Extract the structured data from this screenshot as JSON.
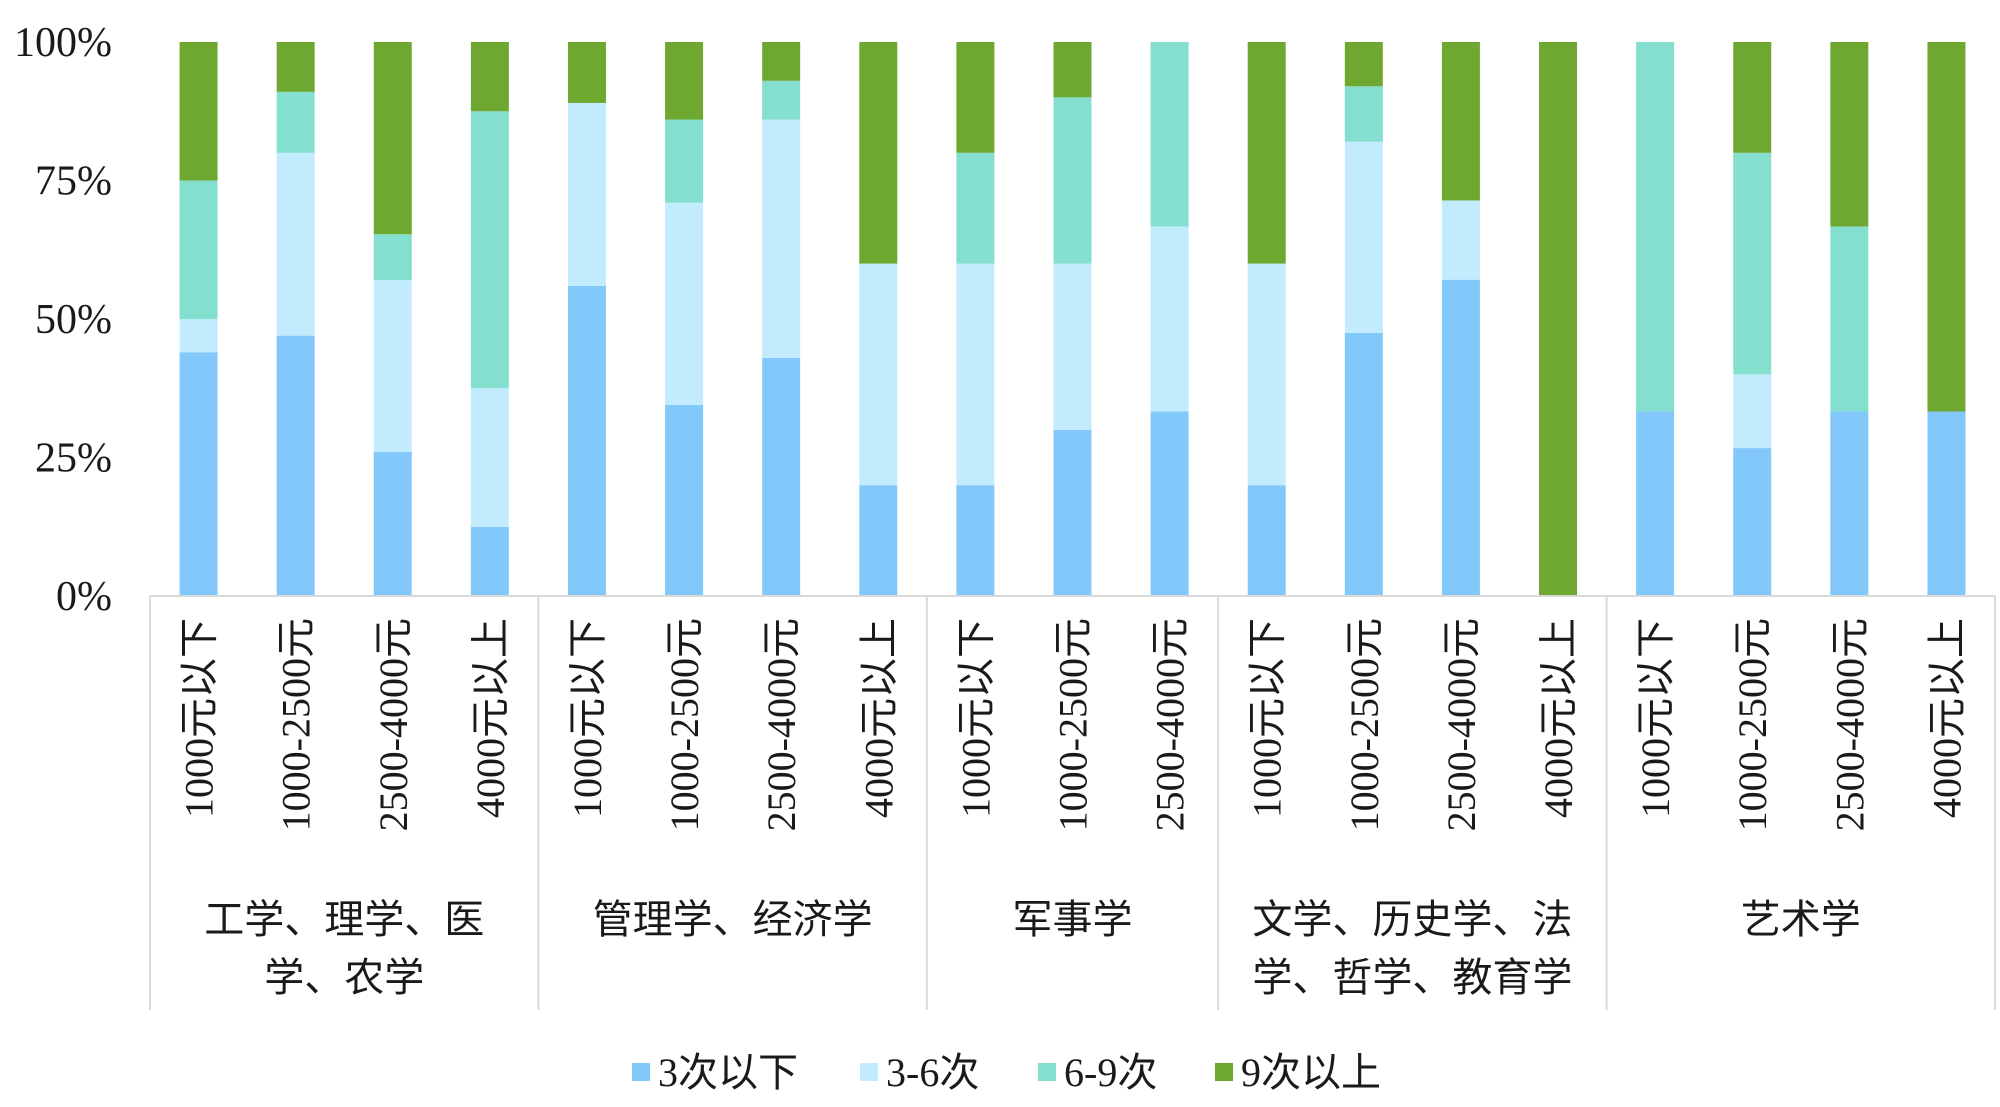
{
  "chart_data": {
    "type": "bar",
    "stacked": true,
    "normalized": true,
    "ylim": [
      0,
      100
    ],
    "y_ticks": [
      "0%",
      "25%",
      "50%",
      "75%",
      "100%"
    ],
    "grid": false,
    "legend_position": "bottom",
    "groups": [
      {
        "label_lines": [
          "工学、理学、医",
          "学、农学"
        ],
        "categories": [
          "1000元以下",
          "1000-2500元",
          "2500-4000元",
          "4000元以上"
        ]
      },
      {
        "label_lines": [
          "管理学、经济学"
        ],
        "categories": [
          "1000元以下",
          "1000-2500元",
          "2500-4000元",
          "4000元以上"
        ]
      },
      {
        "label_lines": [
          "军事学"
        ],
        "categories": [
          "1000元以下",
          "1000-2500元",
          "2500-4000元"
        ]
      },
      {
        "label_lines": [
          "文学、历史学、法",
          "学、哲学、教育学"
        ],
        "categories": [
          "1000元以下",
          "1000-2500元",
          "2500-4000元",
          "4000元以上"
        ]
      },
      {
        "label_lines": [
          "艺术学"
        ],
        "categories": [
          "1000元以下",
          "1000-2500元",
          "2500-4000元",
          "4000元以上"
        ]
      }
    ],
    "series": [
      {
        "name": "3次以下",
        "color": "#82c8fb",
        "values": [
          44,
          47,
          26,
          12.5,
          56,
          34.5,
          43,
          20,
          20,
          30,
          33.3,
          20,
          47.5,
          57.1,
          0,
          33.3,
          26.7,
          33.3,
          33.3
        ]
      },
      {
        "name": "3-6次",
        "color": "#c2ebfd",
        "values": [
          6,
          33,
          31,
          25,
          33,
          36.5,
          43,
          40,
          40,
          30,
          33.4,
          40,
          34.5,
          14.3,
          0,
          0,
          13.3,
          0,
          0
        ]
      },
      {
        "name": "6-9次",
        "color": "#85dfcf",
        "values": [
          25,
          11,
          8.3,
          50,
          0,
          15,
          7,
          0,
          20,
          30,
          33.3,
          0,
          10,
          0,
          0,
          66.7,
          40,
          33.4,
          0
        ]
      },
      {
        "name": "9次以上",
        "color": "#6fa831",
        "values": [
          25,
          9,
          34.7,
          12.5,
          11,
          14,
          7,
          40,
          20,
          10,
          0,
          40,
          8,
          28.6,
          100,
          0,
          20,
          33.3,
          66.7
        ]
      }
    ]
  }
}
